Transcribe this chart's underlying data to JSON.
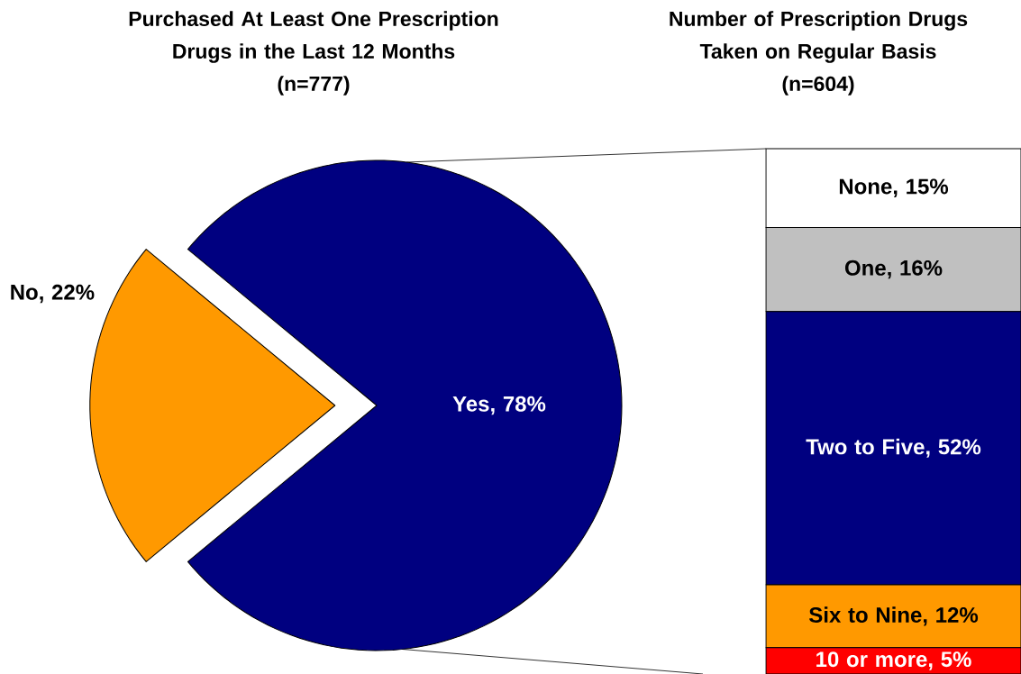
{
  "chart_data": [
    {
      "type": "pie",
      "title": "Purchased At Least One Prescription Drugs in the Last 12 Months",
      "subtitle": "(n=777)",
      "categories": [
        "Yes",
        "No"
      ],
      "values": [
        78,
        22
      ],
      "colors": [
        "#000080",
        "#ff9900"
      ],
      "value_labels": [
        ", 78%",
        ", 22%"
      ]
    },
    {
      "type": "bar",
      "stacked": true,
      "title": "Number of Prescription Drugs Taken on Regular Basis",
      "subtitle": "(n=604)",
      "categories": [
        null
      ],
      "series": [
        {
          "name": "10 or more",
          "color": "#ff0000",
          "values": [
            5
          ],
          "value_labels": [
            ", 5%"
          ]
        },
        {
          "name": "Six to Nine",
          "color": "#ff9900",
          "values": [
            12
          ],
          "value_labels": [
            ", 12%"
          ]
        },
        {
          "name": "Two to Five",
          "color": "#000080",
          "values": [
            52
          ],
          "value_labels": [
            ", 52%"
          ]
        },
        {
          "name": "One",
          "color": "#c0c0c0",
          "values": [
            16
          ],
          "value_labels": [
            ", 16%"
          ]
        },
        {
          "name": "None",
          "color": "#ffffff",
          "values": [
            15
          ],
          "value_labels": [
            ", 15%"
          ]
        }
      ]
    }
  ]
}
